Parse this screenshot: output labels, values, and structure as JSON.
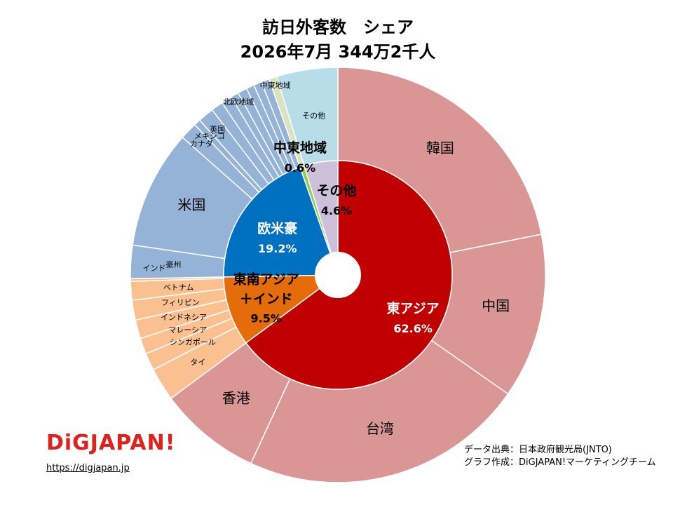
{
  "chart_data": {
    "type": "pie",
    "title": "訪日外客数　シェア",
    "subtitle": "2026年7月 344万2千人",
    "inner_ring": [
      {
        "name": "東アジア",
        "value": 62.6,
        "label": "62.6%",
        "color": "#c00000"
      },
      {
        "name": "東南アジア＋インド",
        "value": 9.5,
        "label": "9.5%",
        "color": "#e46c0a"
      },
      {
        "name": "欧米豪",
        "value": 19.2,
        "label": "19.2%",
        "color": "#0070c0"
      },
      {
        "name": "中東地域",
        "value": 0.6,
        "label": "0.6%",
        "color": "#92d050"
      },
      {
        "name": "その他",
        "value": 4.6,
        "label": "4.6%",
        "color": "#ccc0da"
      }
    ],
    "outer_ring": [
      {
        "name": "韓国",
        "value": 21.1,
        "color": "#d99694"
      },
      {
        "name": "中国",
        "value": 12.4,
        "color": "#d99694"
      },
      {
        "name": "台湾",
        "value": 21.4,
        "color": "#d99694"
      },
      {
        "name": "香港",
        "value": 7.7,
        "color": "#d99694"
      },
      {
        "name": "タイ",
        "value": 2.5,
        "color": "#fac090"
      },
      {
        "name": "シンガポール",
        "value": 1.3,
        "color": "#fac090"
      },
      {
        "name": "マレーシア",
        "value": 1.2,
        "color": "#fac090"
      },
      {
        "name": "インドネシア",
        "value": 1.4,
        "color": "#fac090"
      },
      {
        "name": "フィリピン",
        "value": 1.5,
        "color": "#fac090"
      },
      {
        "name": "ベトナム",
        "value": 1.4,
        "color": "#fac090"
      },
      {
        "name": "インド",
        "value": 0.2,
        "color": "#fac090"
      },
      {
        "name": "豪州",
        "value": 2.5,
        "color": "#95b3d7"
      },
      {
        "name": "米国",
        "value": 8.9,
        "color": "#95b3d7"
      },
      {
        "name": "カナダ",
        "value": 1.3,
        "color": "#95b3d7"
      },
      {
        "name": "メキシコ",
        "value": 0.5,
        "color": "#95b3d7"
      },
      {
        "name": "英国",
        "value": 1.2,
        "color": "#95b3d7"
      },
      {
        "name": "",
        "value": 0.9,
        "color": "#95b3d7"
      },
      {
        "name": "",
        "value": 0.8,
        "color": "#95b3d7"
      },
      {
        "name": "北欧地域",
        "value": 0.6,
        "color": "#95b3d7"
      },
      {
        "name": "",
        "value": 0.7,
        "color": "#95b3d7"
      },
      {
        "name": "",
        "value": 0.6,
        "color": "#95b3d7"
      },
      {
        "name": "",
        "value": 0.6,
        "color": "#95b3d7"
      },
      {
        "name": "",
        "value": 0.6,
        "color": "#95b3d7"
      },
      {
        "name": "中東地域",
        "value": 0.6,
        "color": "#d7e4bd"
      },
      {
        "name": "その他",
        "value": 4.6,
        "color": "#b7dee8"
      }
    ]
  },
  "footer": {
    "source": "データ出典：日本政府観光局(JNTO)",
    "author": "グラフ作成：DiGJAPAN!マーケティングチーム",
    "logo_text": "DiGJAPAN!",
    "url": "https://digjapan.jp"
  }
}
